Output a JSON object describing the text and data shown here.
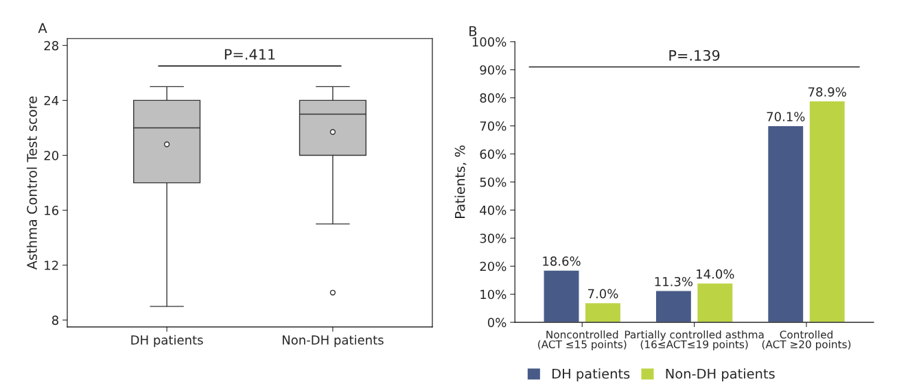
{
  "chart_data": [
    {
      "type": "box",
      "title": "A",
      "ylabel": "Asthma Control Test score",
      "categories": [
        "DH patients",
        "Non-DH patients"
      ],
      "boxes": [
        {
          "low": 9,
          "q1": 18,
          "median": 22,
          "q3": 24,
          "high": 25,
          "mean": 20.8
        },
        {
          "low": 15,
          "q1": 20,
          "median": 23,
          "q3": 24,
          "high": 25,
          "mean": 21.7,
          "outliers": [
            10
          ]
        }
      ],
      "color": "#bfbfbf",
      "ylim": [
        7.5,
        28.5
      ],
      "yticks": [
        8,
        12,
        16,
        20,
        24,
        28
      ],
      "grid": false,
      "annotations": [
        "P=.411"
      ]
    },
    {
      "type": "bar",
      "title": "B",
      "ylabel": "Patients, %",
      "categories": [
        "Noncontrolled\n(ACT ≤15 points)",
        "Partially controlled asthma\n(16≤ACT≤19 points)",
        "Controlled\n(ACT ≥20 points)"
      ],
      "series": [
        {
          "name": "DH patients",
          "color": "#485a87",
          "values": [
            18.6,
            11.3,
            70.1
          ],
          "value_labels": [
            "18.6%",
            "11.3%",
            "70.1%"
          ]
        },
        {
          "name": "Non-DH patients",
          "color": "#bcd444",
          "values": [
            7.0,
            14.0,
            78.9
          ],
          "value_labels": [
            "7.0%",
            "14.0%",
            "78.9%"
          ]
        }
      ],
      "ylim": [
        0,
        100
      ],
      "yticks": [
        {
          "value": 0,
          "label": "0%"
        },
        {
          "value": 10,
          "label": "10%"
        },
        {
          "value": 20,
          "label": "20%"
        },
        {
          "value": 30,
          "label": "30%"
        },
        {
          "value": 40,
          "label": "40%"
        },
        {
          "value": 50,
          "label": "50%"
        },
        {
          "value": 60,
          "label": "60%"
        },
        {
          "value": 70,
          "label": "70%"
        },
        {
          "value": 80,
          "label": "80%"
        },
        {
          "value": 90,
          "label": "90%"
        },
        {
          "value": 100,
          "label": "100%"
        }
      ],
      "legend": "bottom",
      "annotations": [
        "P=.139"
      ],
      "ref_lines": [
        {
          "axis": "y",
          "value": 91,
          "color": "#000000"
        }
      ]
    }
  ]
}
